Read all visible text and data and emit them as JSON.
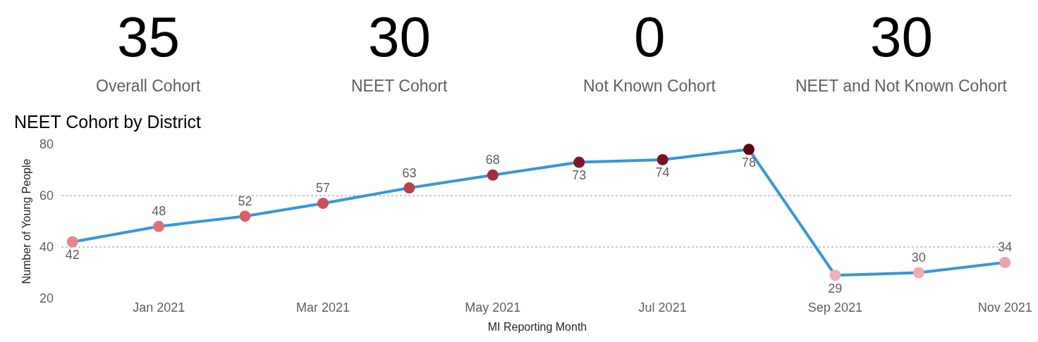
{
  "chart_data": [
    {
      "type": "other",
      "categories": [
        "Overall Cohort",
        "NEET Cohort",
        "Not Known Cohort",
        "NEET and Not Known Cohort"
      ],
      "values": [
        35,
        30,
        0,
        30
      ],
      "data_labels": true
    },
    {
      "type": "line",
      "title": "NEET Cohort by District",
      "xlabel": "MI Reporting Month",
      "ylabel": "Number of Young People",
      "x": [
        "2020-12",
        "2021-01",
        "2021-02",
        "2021-03",
        "2021-04",
        "2021-05",
        "2021-06",
        "2021-07",
        "2021-08",
        "2021-09",
        "2021-10",
        "2021-11"
      ],
      "series": [
        {
          "color": "#3a96d8",
          "values": [
            42,
            48,
            52,
            57,
            63,
            68,
            73,
            74,
            78,
            29,
            30,
            34
          ],
          "colors": [
            "#e8868c",
            "#e07078",
            "#dc6068",
            "#cc505a",
            "#b8404a",
            "#a03040",
            "#80182a",
            "#7a1424",
            "#600010",
            "#f0b0b4",
            "#eeacb0",
            "#eca4aa"
          ]
        }
      ],
      "xlim": [
        "2020-11-27",
        "2021-11-04"
      ],
      "ylim": [
        20,
        80
      ],
      "xticks": [
        {
          "value": "2021-01",
          "label": "Jan 2021"
        },
        {
          "value": "2021-03",
          "label": "Mar 2021"
        },
        {
          "value": "2021-05",
          "label": "May 2021"
        },
        {
          "value": "2021-07",
          "label": "Jul 2021"
        },
        {
          "value": "2021-09",
          "label": "Sep 2021"
        },
        {
          "value": "2021-11",
          "label": "Nov 2021"
        }
      ],
      "yticks": [
        20,
        40,
        60,
        80
      ],
      "grid": "y",
      "marker": "circle",
      "line_style": "solid",
      "data_labels": true
    }
  ]
}
